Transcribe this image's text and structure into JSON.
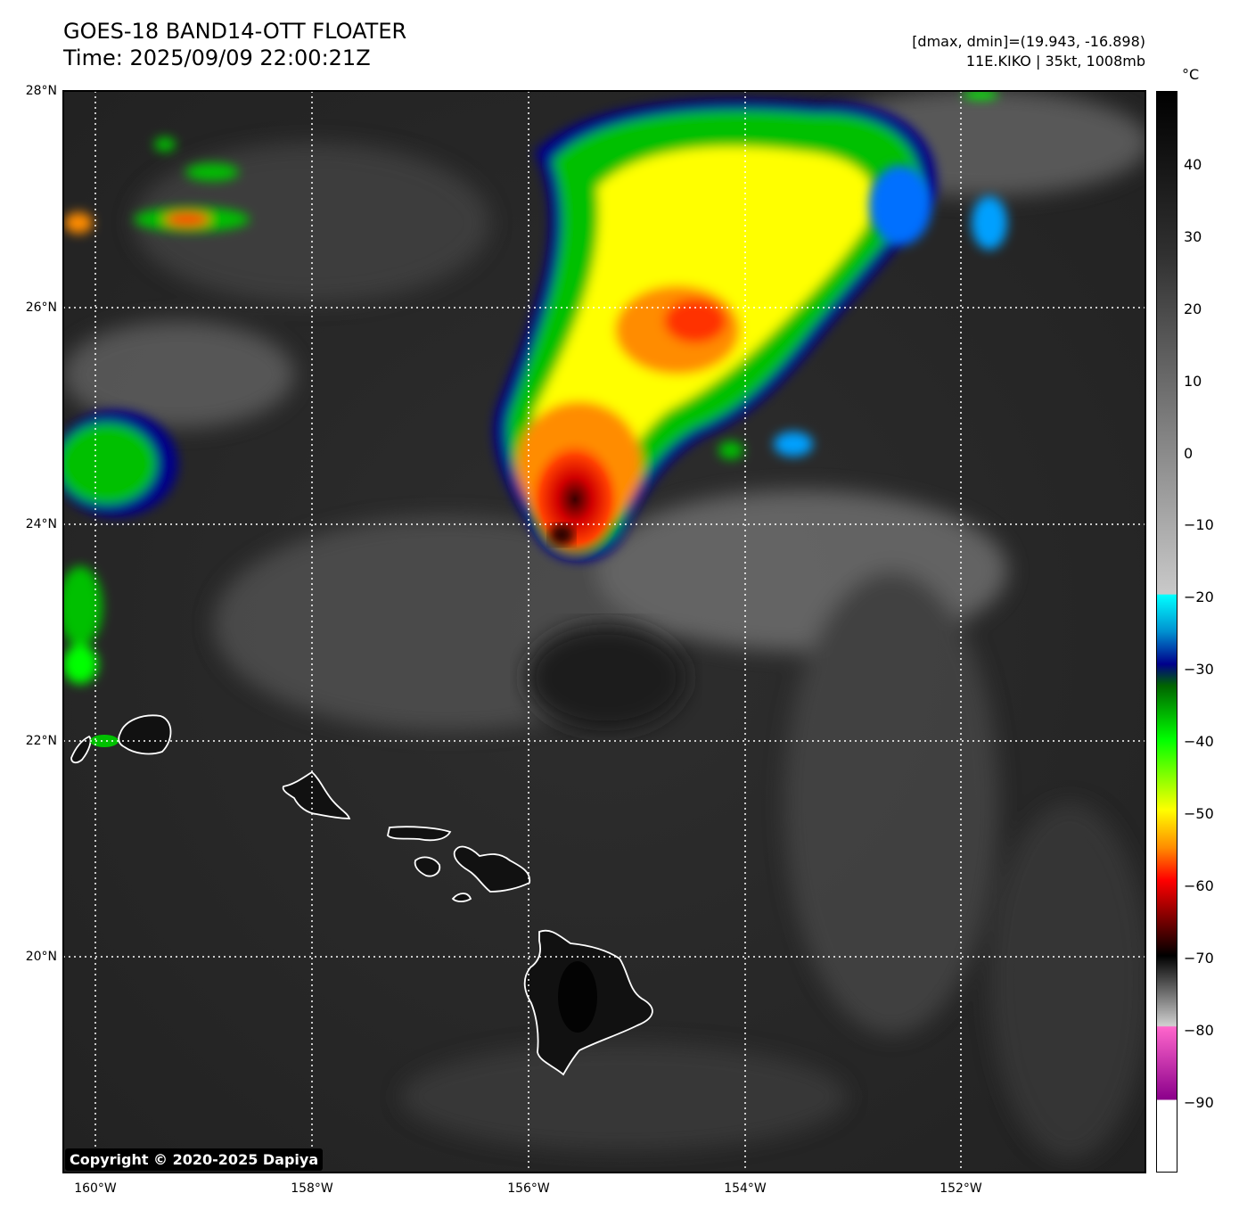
{
  "title": {
    "line1": "GOES-18 BAND14-OTT FLOATER",
    "line2": "Time: 2025/09/09 22:00:21Z"
  },
  "info": {
    "line1": "[dmax, dmin]=(19.943, -16.898)",
    "line2": "11E.KIKO | 35kt, 1008mb"
  },
  "colorbar": {
    "unit": "°C",
    "ticks": [
      "40",
      "30",
      "20",
      "10",
      "0",
      "−10",
      "−20",
      "−30",
      "−40",
      "−50",
      "−60",
      "−70",
      "−80",
      "−90"
    ]
  },
  "axes": {
    "lat_labels": [
      "28°N",
      "26°N",
      "24°N",
      "22°N",
      "20°N"
    ],
    "lon_labels": [
      "160°W",
      "158°W",
      "156°W",
      "154°W",
      "152°W"
    ]
  },
  "copyright": "Copyright © 2020-2025 Dapiya",
  "colors": {
    "coldest_core": "#8b0000",
    "deep_convection": "#ff0000",
    "cold_tops": "#ffff00",
    "cloud_tops": "#00ff00",
    "cirrus_edge": "#00008b",
    "ocean": "#262626"
  }
}
